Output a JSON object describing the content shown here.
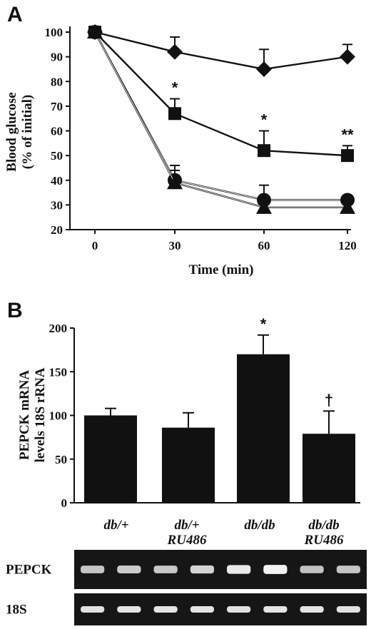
{
  "chart_data": [
    {
      "panel": "A",
      "type": "line",
      "xlabel": "Time (min)",
      "ylabel": [
        "Blood glucose",
        "(% of initial)"
      ],
      "x": [
        0,
        30,
        60,
        120
      ],
      "x_tick_labels": [
        "0",
        "30",
        "60",
        "120"
      ],
      "y_ticks": [
        20,
        30,
        40,
        50,
        60,
        70,
        80,
        90,
        100
      ],
      "ylim": [
        20,
        100
      ],
      "grid": false,
      "series": [
        {
          "marker": "diamond",
          "values": [
            100,
            92,
            85,
            90
          ],
          "errors": [
            0,
            6,
            8,
            5
          ]
        },
        {
          "marker": "square",
          "values": [
            100,
            67,
            52,
            50
          ],
          "errors": [
            0,
            6,
            8,
            4
          ],
          "annotations": [
            "",
            "*",
            "*",
            "**"
          ]
        },
        {
          "marker": "circle",
          "values": [
            100,
            40,
            32,
            32
          ],
          "errors": [
            0,
            6,
            6,
            0
          ]
        },
        {
          "marker": "triangle",
          "values": [
            100,
            39,
            29,
            29
          ],
          "errors": [
            0,
            5,
            4,
            3
          ]
        }
      ]
    },
    {
      "panel": "B",
      "type": "bar",
      "ylabel": [
        "PEPCK mRNA",
        "levels 18S rRNA"
      ],
      "categories": [
        [
          "db/+"
        ],
        [
          "db/+",
          "RU486"
        ],
        [
          "db/db"
        ],
        [
          "db/db",
          "RU486"
        ]
      ],
      "values": [
        100,
        86,
        170,
        79
      ],
      "errors": [
        8,
        17,
        22,
        26
      ],
      "annotations": [
        "",
        "",
        "*",
        "†"
      ],
      "y_ticks": [
        0,
        50,
        100,
        150,
        200
      ],
      "ylim": [
        0,
        200
      ]
    }
  ],
  "gel": {
    "lanes": 8,
    "rows": [
      {
        "label": "PEPCK",
        "intensity": [
          0.62,
          0.66,
          0.64,
          0.72,
          0.88,
          0.95,
          0.6,
          0.62
        ]
      },
      {
        "label": "18S",
        "intensity": [
          0.82,
          0.84,
          0.84,
          0.84,
          0.82,
          0.84,
          0.84,
          0.82
        ]
      }
    ]
  }
}
